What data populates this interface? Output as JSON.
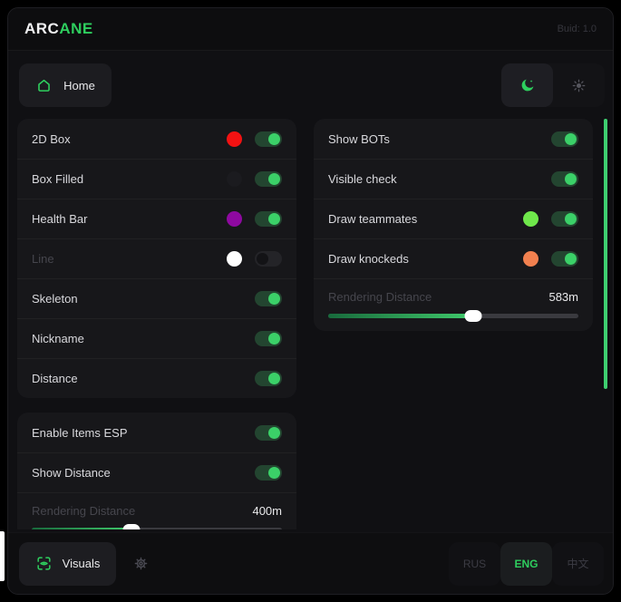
{
  "header": {
    "brand_prefix": "ARC",
    "brand_accent": "ANE",
    "build": "Buid: 1.0"
  },
  "nav": {
    "home_label": "Home"
  },
  "colors": {
    "accent": "#2ece5e",
    "toggle_on": "#3bd068",
    "scrollbar": "#3ecf70"
  },
  "panels": [
    {
      "id": "esp",
      "rows": [
        {
          "type": "toggle",
          "label": "2D Box",
          "swatch": "#f21212",
          "on": true
        },
        {
          "type": "toggle",
          "label": "Box Filled",
          "swatch": "#1b1b1f",
          "on": true
        },
        {
          "type": "toggle",
          "label": "Health Bar",
          "swatch": "#8e09a0",
          "on": true
        },
        {
          "type": "toggle",
          "label": "Line",
          "swatch": "#ffffff",
          "on": false,
          "dim": true
        },
        {
          "type": "toggle",
          "label": "Skeleton",
          "on": true
        },
        {
          "type": "toggle",
          "label": "Nickname",
          "on": true
        },
        {
          "type": "toggle",
          "label": "Distance",
          "on": true
        }
      ]
    },
    {
      "id": "items",
      "clipped": true,
      "rows": [
        {
          "type": "toggle",
          "label": "Enable Items ESP",
          "on": true
        },
        {
          "type": "toggle",
          "label": "Show Distance",
          "on": true
        }
      ],
      "slider": {
        "label": "Rendering Distance",
        "value": "400m",
        "percent": 40
      }
    },
    {
      "id": "world",
      "rows": [
        {
          "type": "toggle",
          "label": "Show BOTs",
          "on": true
        },
        {
          "type": "toggle",
          "label": "Visible check",
          "on": true
        },
        {
          "type": "toggle",
          "label": "Draw teammates",
          "swatch": "#6fe74b",
          "on": true
        },
        {
          "type": "toggle",
          "label": "Draw knockeds",
          "swatch": "#f1804f",
          "on": true
        }
      ],
      "slider": {
        "label": "Rendering Distance",
        "value": "583m",
        "percent": 58
      }
    }
  ],
  "footer": {
    "visuals_label": "Visuals",
    "languages": [
      {
        "label": "RUS",
        "active": false
      },
      {
        "label": "ENG",
        "active": true
      },
      {
        "label": "中文",
        "active": false
      }
    ]
  }
}
